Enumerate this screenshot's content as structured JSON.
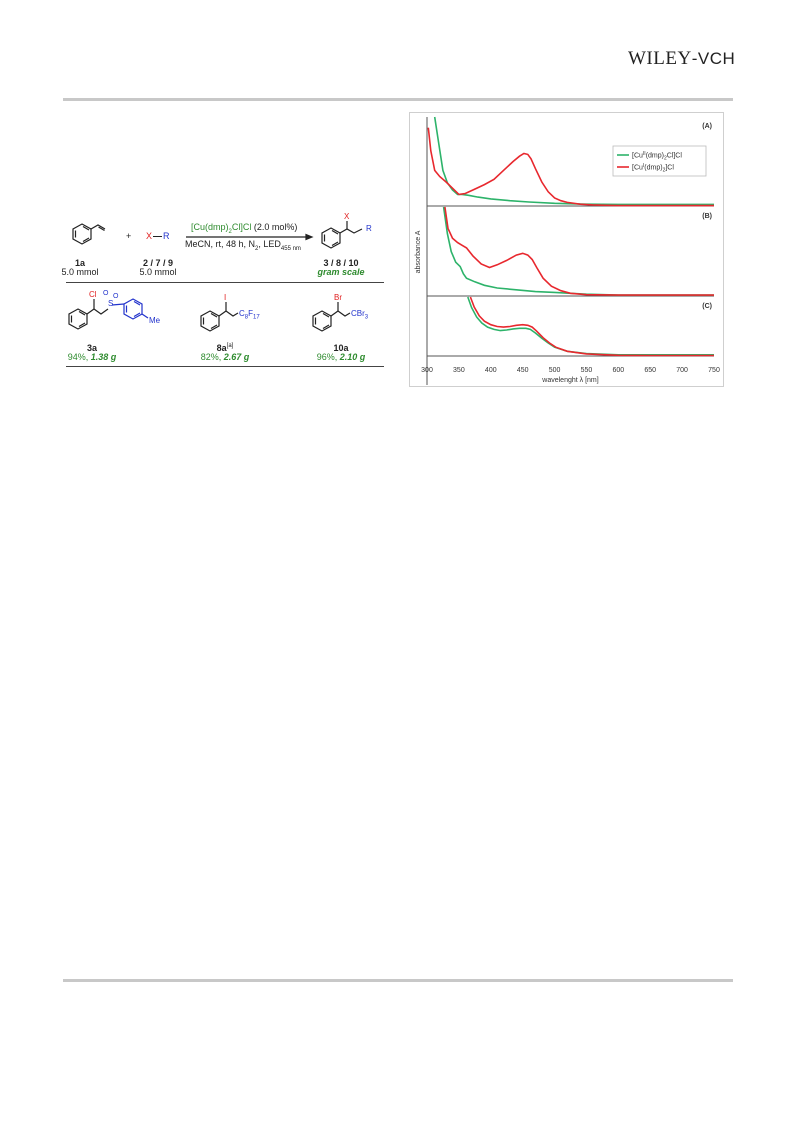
{
  "header": {
    "publisher_logo": "WILEY-VCH",
    "publisher_logo_part1": "WILEY",
    "publisher_logo_part2": "-VCH"
  },
  "scheme": {
    "reactant1": {
      "label": "1a",
      "amount": "5.0 mmol"
    },
    "plus": "+",
    "reactant2": {
      "formula_x": "X",
      "formula_r": "R",
      "label": "2 / 7 / 9",
      "amount": "5.0 mmol"
    },
    "catalyst_main": "[Cu(dmp)",
    "catalyst_sub": "2",
    "catalyst_tail": "Cl]Cl",
    "catalyst_loading": "(2.0 mol%)",
    "conditions_main": "MeCN, rt, 48 h, N",
    "conditions_n2_sub": "2",
    "conditions_led": ", LED",
    "conditions_led_sub": "455 nm",
    "product": {
      "x": "X",
      "r": "R",
      "label": "3 / 8 / 10",
      "note": "gram scale"
    },
    "entries": [
      {
        "label": "3a",
        "yield": "94%, ",
        "mass": "1.38 g",
        "x": "Cl",
        "s": "S",
        "o1": "O",
        "o2": "O",
        "me": "Me"
      },
      {
        "label": "8a",
        "label_sup": "[a]",
        "yield": "82%, ",
        "mass": "2.67 g",
        "x": "I",
        "r_main": "C",
        "r_sub1": "8",
        "r_mid": "F",
        "r_sub2": "17"
      },
      {
        "label": "10a",
        "yield": "96%, ",
        "mass": "2.10 g",
        "x": "Br",
        "r": "CBr",
        "r_sub": "3"
      }
    ]
  },
  "chart_data": {
    "type": "line",
    "xlabel": "wavelenght λ [nm]",
    "ylabel": "absorbance A",
    "xlim": [
      300,
      750
    ],
    "x_ticks": [
      300,
      350,
      400,
      450,
      500,
      550,
      600,
      650,
      700,
      750
    ],
    "legend_position": "top-right",
    "colors": {
      "green": "#2db36a",
      "red": "#e8282e"
    },
    "legend": [
      {
        "pre": "[Cu",
        "sup": "II",
        "post": "(dmp)",
        "sub": "2",
        "tail": "Cl]Cl",
        "color": "#2db36a"
      },
      {
        "pre": "[Cu",
        "sup": "I",
        "post": "(dmp)",
        "sub": "2",
        "tail": "]Cl",
        "color": "#e8282e"
      }
    ],
    "panels": [
      {
        "label": "(A)",
        "ylim": [
          0,
          1
        ],
        "series": [
          {
            "name": "[Cu(II)(dmp)2Cl]Cl",
            "color": "#2db36a",
            "x": [
              312,
              318,
              325,
              332,
              340,
              348,
              355,
              365,
              380,
              400,
              430,
              460,
              500,
              550,
              600,
              650,
              700,
              750
            ],
            "y": [
              1.0,
              0.72,
              0.4,
              0.26,
              0.18,
              0.13,
              0.13,
              0.12,
              0.1,
              0.08,
              0.06,
              0.045,
              0.03,
              0.02,
              0.018,
              0.018,
              0.018,
              0.018
            ]
          },
          {
            "name": "[Cu(I)(dmp)2]Cl",
            "color": "#e8282e",
            "x": [
              302,
              306,
              312,
              320,
              330,
              340,
              350,
              360,
              375,
              390,
              405,
              420,
              435,
              445,
              452,
              458,
              463,
              470,
              480,
              490,
              500,
              510,
              520,
              540,
              560,
              580,
              600,
              650,
              700,
              750
            ],
            "y": [
              0.88,
              0.62,
              0.4,
              0.33,
              0.27,
              0.2,
              0.13,
              0.14,
              0.19,
              0.24,
              0.3,
              0.4,
              0.5,
              0.56,
              0.59,
              0.58,
              0.53,
              0.42,
              0.27,
              0.16,
              0.09,
              0.06,
              0.04,
              0.02,
              0.012,
              0.008,
              0.005,
              0.005,
              0.005,
              0.005
            ]
          }
        ]
      },
      {
        "label": "(B)",
        "ylim": [
          0,
          1
        ],
        "series": [
          {
            "name": "[Cu(II)(dmp)2Cl]Cl",
            "color": "#2db36a",
            "x": [
              326,
              332,
              338,
              345,
              352,
              357,
              362,
              375,
              390,
              410,
              440,
              470,
              500,
              550,
              600,
              650,
              700,
              750
            ],
            "y": [
              1.0,
              0.7,
              0.5,
              0.38,
              0.33,
              0.25,
              0.2,
              0.16,
              0.12,
              0.09,
              0.07,
              0.05,
              0.04,
              0.02,
              0.01,
              0.01,
              0.01,
              0.01
            ]
          },
          {
            "name": "[Cu(I)(dmp)2]Cl",
            "color": "#e8282e",
            "x": [
              328,
              333,
              340,
              348,
              355,
              362,
              372,
              385,
              398,
              410,
              425,
              440,
              450,
              458,
              465,
              472,
              482,
              495,
              510,
              525,
              550,
              600,
              650,
              700,
              750
            ],
            "y": [
              1.0,
              0.76,
              0.65,
              0.6,
              0.57,
              0.54,
              0.45,
              0.36,
              0.32,
              0.35,
              0.4,
              0.46,
              0.48,
              0.46,
              0.41,
              0.32,
              0.2,
              0.11,
              0.06,
              0.03,
              0.015,
              0.01,
              0.01,
              0.01,
              0.01
            ]
          }
        ]
      },
      {
        "label": "(C)",
        "ylim": [
          0,
          1
        ],
        "series": [
          {
            "name": "[Cu(II)(dmp)2Cl]Cl",
            "color": "#2db36a",
            "x": [
              364,
              370,
              378,
              386,
              395,
              405,
              415,
              425,
              435,
              445,
              455,
              462,
              470,
              480,
              490,
              500,
              520,
              550,
              600,
              650,
              700,
              750
            ],
            "y": [
              1.0,
              0.82,
              0.66,
              0.56,
              0.49,
              0.45,
              0.43,
              0.44,
              0.46,
              0.47,
              0.47,
              0.45,
              0.39,
              0.3,
              0.22,
              0.15,
              0.08,
              0.04,
              0.02,
              0.02,
              0.02,
              0.02
            ]
          },
          {
            "name": "[Cu(I)(dmp)2]Cl",
            "color": "#e8282e",
            "x": [
              368,
              374,
              382,
              390,
              400,
              410,
              420,
              430,
              440,
              450,
              458,
              465,
              472,
              482,
              492,
              502,
              520,
              550,
              600,
              650,
              700,
              750
            ],
            "y": [
              1.0,
              0.83,
              0.68,
              0.59,
              0.53,
              0.5,
              0.49,
              0.5,
              0.52,
              0.53,
              0.52,
              0.49,
              0.42,
              0.31,
              0.22,
              0.15,
              0.08,
              0.035,
              0.012,
              0.008,
              0.008,
              0.008
            ]
          }
        ]
      }
    ]
  }
}
